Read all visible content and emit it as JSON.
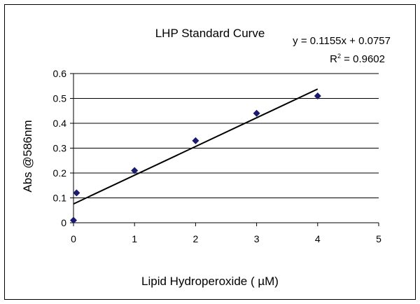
{
  "chart_data": {
    "type": "scatter",
    "title": "LHP Standard Curve",
    "xlabel": "Lipid Hydroperoxide ( µM)",
    "ylabel": "Abs @586nm",
    "xlim": [
      0,
      5
    ],
    "ylim": [
      0,
      0.6
    ],
    "x_ticks": [
      "0",
      "1",
      "2",
      "3",
      "4",
      "5"
    ],
    "y_ticks": [
      "0",
      "0.1",
      "0.2",
      "0.3",
      "0.4",
      "0.5",
      "0.6"
    ],
    "grid": "horizontal",
    "legend": "none",
    "marker_color": "#1a1a6e",
    "series": [
      {
        "x": [
          0,
          0.05,
          1,
          2,
          3,
          4
        ],
        "y": [
          0.01,
          0.12,
          0.21,
          0.33,
          0.44,
          0.51
        ]
      }
    ],
    "trendline": {
      "equation": "y = 0.1155x + 0.0757",
      "r2_label": "R",
      "r2_value": " = 0.9602",
      "slope": 0.1155,
      "intercept": 0.0757,
      "x_range": [
        0,
        4
      ]
    }
  }
}
